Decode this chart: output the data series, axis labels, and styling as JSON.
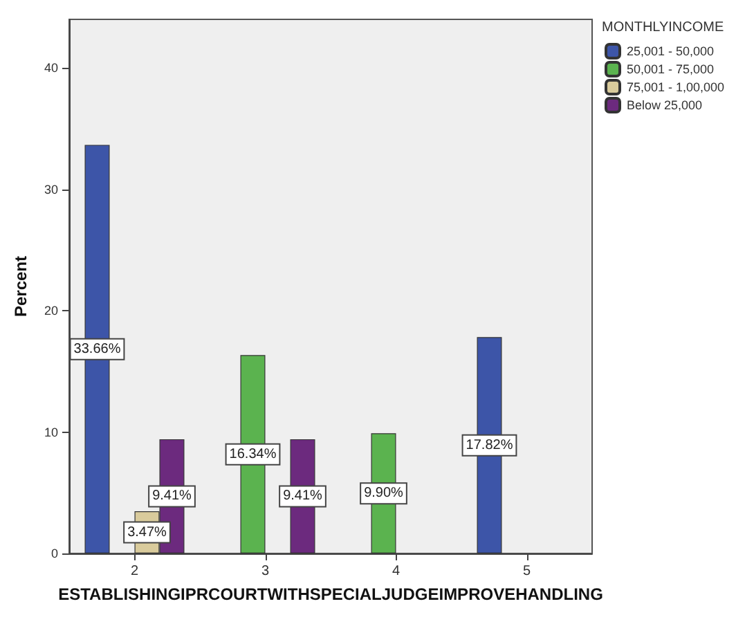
{
  "chart_data": {
    "type": "bar",
    "xlabel": "ESTABLISHINGIPRCOURTWITHSPECIALJUDGEIMPROVEHANDLING",
    "ylabel": "Percent",
    "legend_title": "MONTHLYINCOME",
    "categories": [
      "2",
      "3",
      "4",
      "5"
    ],
    "series": [
      {
        "name": "25,001 - 50,000",
        "color": "#3d55a8",
        "values": [
          33.66,
          null,
          null,
          17.82
        ],
        "value_labels": [
          "33.66%",
          null,
          null,
          "17.82%"
        ]
      },
      {
        "name": "50,001 - 75,000",
        "color": "#5bb34f",
        "values": [
          null,
          16.34,
          9.9,
          null
        ],
        "value_labels": [
          null,
          "16.34%",
          "9.90%",
          null
        ]
      },
      {
        "name": "75,001 - 1,00,000",
        "color": "#d9cb9c",
        "values": [
          3.47,
          null,
          null,
          null
        ],
        "value_labels": [
          "3.47%",
          null,
          null,
          null
        ]
      },
      {
        "name": "Below 25,000",
        "color": "#6c2a7e",
        "values": [
          9.41,
          9.41,
          null,
          null
        ],
        "value_labels": [
          "9.41%",
          "9.41%",
          null,
          null
        ]
      }
    ],
    "ylim": [
      0,
      44
    ],
    "yticks": [
      0,
      10,
      20,
      30,
      40
    ],
    "grid": false,
    "legend": "top right"
  }
}
